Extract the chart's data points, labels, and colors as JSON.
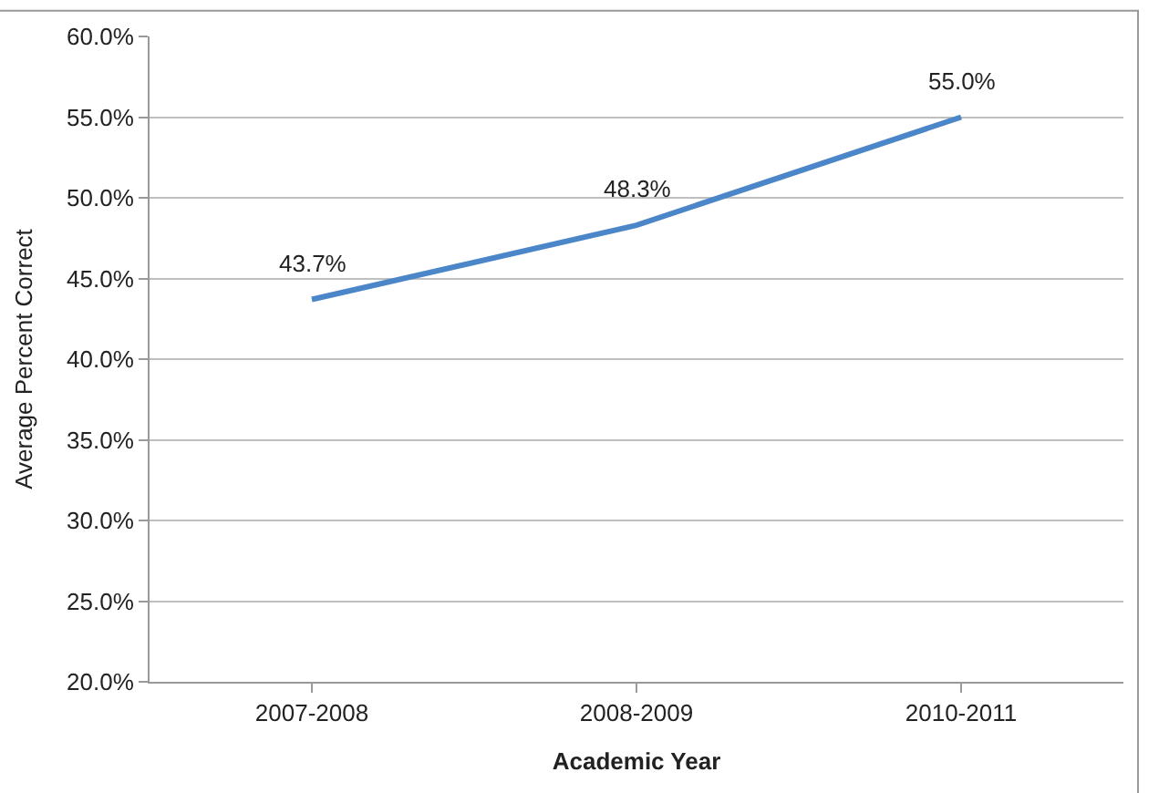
{
  "chart_data": {
    "type": "line",
    "xlabel": "Academic Year",
    "ylabel": "Average Percent Correct",
    "categories": [
      "2007-2008",
      "2008-2009",
      "2010-2011"
    ],
    "series": [
      {
        "color": "#4a86c8",
        "values": [
          43.7,
          48.3,
          55.0
        ],
        "value_labels": [
          "43.7%",
          "48.3%",
          "55.0%"
        ]
      }
    ],
    "ylim": [
      20,
      60
    ],
    "yticks": [
      {
        "value": 20,
        "label": "20.0%"
      },
      {
        "value": 25,
        "label": "25.0%"
      },
      {
        "value": 30,
        "label": "30.0%"
      },
      {
        "value": 35,
        "label": "35.0%"
      },
      {
        "value": 40,
        "label": "40.0%"
      },
      {
        "value": 45,
        "label": "45.0%"
      },
      {
        "value": 50,
        "label": "50.0%"
      },
      {
        "value": 55,
        "label": "55.0%"
      },
      {
        "value": 60,
        "label": "60.0%"
      }
    ],
    "grid": "y",
    "marker": "none",
    "line_style": "solid"
  }
}
